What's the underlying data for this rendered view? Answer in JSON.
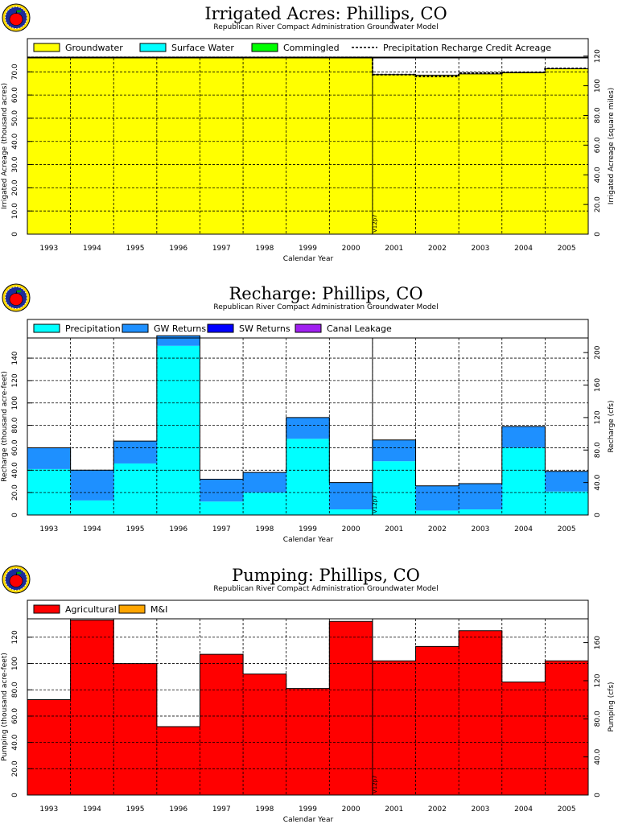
{
  "colors": {
    "groundwater": "#ffff00",
    "surface_water": "#00ffff",
    "commingled": "#00ff00",
    "precipitation": "#00ffff",
    "gw_returns": "#1e90ff",
    "sw_returns": "#0000ff",
    "canal_leakage": "#a020f0",
    "agricultural": "#ff0000",
    "mi": "#ffa500"
  },
  "icons": [
    "apple-logo-icon"
  ],
  "chart_data": [
    {
      "type": "area",
      "title": "Irrigated Acres: Phillips, CO",
      "subtitle": "Republican River Compact Administration Groundwater Model",
      "xlabel": "Calendar Year",
      "ylabel": "Irrigated Acreage (thousand acres)",
      "ylabel_right": "Irrigated Acreage (square miles)",
      "categories": [
        "1993",
        "1994",
        "1995",
        "1996",
        "1997",
        "1998",
        "1999",
        "2000",
        "2001",
        "2002",
        "2003",
        "2004",
        "2005"
      ],
      "ylim": [
        0,
        76
      ],
      "yticks": [
        0,
        10.0,
        20.0,
        30.0,
        40.0,
        50.0,
        60.0,
        70.0
      ],
      "yticklabels": [
        "0",
        "10.0",
        "20.0",
        "30.0",
        "40.0",
        "50.0",
        "60.0",
        "70.0"
      ],
      "ylim_right": [
        0,
        118.75
      ],
      "yticks_right": [
        0,
        20.0,
        40.0,
        60.0,
        80.0,
        100,
        120
      ],
      "yticklabels_right": [
        "0",
        "20.0",
        "40.0",
        "60.0",
        "80.0",
        "100",
        "120"
      ],
      "legend_placement": "top",
      "grid": true,
      "marker_label": "V12p7",
      "marker_x": 2000.5,
      "series": [
        {
          "name": "Groundwater",
          "values": [
            76.2,
            76.2,
            76.2,
            76.2,
            76.2,
            76.2,
            76.2,
            76.2,
            68.8,
            68.6,
            69.1,
            69.6,
            71.3
          ]
        },
        {
          "name": "Surface Water",
          "values": [
            0,
            0,
            0,
            0,
            0,
            0,
            0,
            0,
            0,
            0,
            0,
            0,
            0
          ]
        },
        {
          "name": "Commingled",
          "values": [
            0,
            0,
            0,
            0,
            0,
            0,
            0,
            0,
            0,
            0,
            0,
            0,
            0
          ]
        },
        {
          "name": "Precipitation Recharge Credit Acreage",
          "style": "dashed",
          "values": [
            76.2,
            76.2,
            76.2,
            76.2,
            76.2,
            76.2,
            76.2,
            76.2,
            68.8,
            68.0,
            69.5,
            69.8,
            71.5
          ]
        }
      ]
    },
    {
      "type": "area",
      "title": "Recharge: Phillips, CO",
      "subtitle": "Republican River Compact Administration Groundwater Model",
      "xlabel": "Calendar Year",
      "ylabel": "Recharge (thousand acre-feet)",
      "ylabel_right": "Recharge (cfs)",
      "categories": [
        "1993",
        "1994",
        "1995",
        "1996",
        "1997",
        "1998",
        "1999",
        "2000",
        "2001",
        "2002",
        "2003",
        "2004",
        "2005"
      ],
      "ylim": [
        0,
        158
      ],
      "yticks": [
        0,
        20.0,
        40.0,
        60.0,
        80.0,
        100,
        120,
        140
      ],
      "yticklabels": [
        "0",
        "20.0",
        "40.0",
        "60.0",
        "80.0",
        "100",
        "120",
        "140"
      ],
      "ylim_right": [
        0,
        218
      ],
      "yticks_right": [
        0,
        40.0,
        80.0,
        120,
        160,
        200
      ],
      "yticklabels_right": [
        "0",
        "40.0",
        "80.0",
        "120",
        "160",
        "200"
      ],
      "legend_placement": "top",
      "grid": true,
      "marker_label": "V12p7",
      "marker_x": 2000.5,
      "series": [
        {
          "name": "Precipitation",
          "values": [
            41,
            13,
            46,
            151,
            12,
            20,
            68,
            5,
            48,
            4,
            5,
            60,
            21
          ]
        },
        {
          "name": "GW Returns",
          "values": [
            19,
            27,
            20,
            9,
            20,
            18,
            19,
            24,
            19,
            22,
            23,
            19,
            18
          ]
        },
        {
          "name": "SW Returns",
          "values": [
            0,
            0,
            0,
            0,
            0,
            0,
            0,
            0,
            0,
            0,
            0,
            0,
            0
          ]
        },
        {
          "name": "Canal Leakage",
          "values": [
            0,
            0,
            0,
            0,
            0,
            0,
            0,
            0,
            0,
            0,
            0,
            0,
            0
          ]
        }
      ]
    },
    {
      "type": "area",
      "title": "Pumping: Phillips, CO",
      "subtitle": "Republican River Compact Administration Groundwater Model",
      "xlabel": "Calendar Year",
      "ylabel": "Pumping (thousand acre-feet)",
      "ylabel_right": "Pumping (cfs)",
      "categories": [
        "1993",
        "1994",
        "1995",
        "1996",
        "1997",
        "1998",
        "1999",
        "2000",
        "2001",
        "2002",
        "2003",
        "2004",
        "2005"
      ],
      "ylim": [
        0,
        134
      ],
      "yticks": [
        0,
        20.0,
        40.0,
        60.0,
        80.0,
        100,
        120
      ],
      "yticklabels": [
        "0",
        "20.0",
        "40.0",
        "60.0",
        "80.0",
        "100",
        "120"
      ],
      "ylim_right": [
        0,
        185
      ],
      "yticks_right": [
        0,
        40.0,
        80.0,
        120,
        160
      ],
      "yticklabels_right": [
        "0",
        "40.0",
        "80.0",
        "120",
        "160"
      ],
      "legend_placement": "top",
      "grid": true,
      "marker_label": "V12p7",
      "marker_x": 2000.5,
      "series": [
        {
          "name": "Agricultural",
          "values": [
            72.5,
            133,
            100,
            52,
            107,
            92,
            81,
            132,
            102,
            113,
            125,
            86,
            102
          ]
        },
        {
          "name": "M&I",
          "values": [
            0,
            0,
            0,
            0,
            0,
            0,
            0,
            0,
            0,
            0,
            0,
            0,
            0
          ]
        }
      ]
    }
  ]
}
